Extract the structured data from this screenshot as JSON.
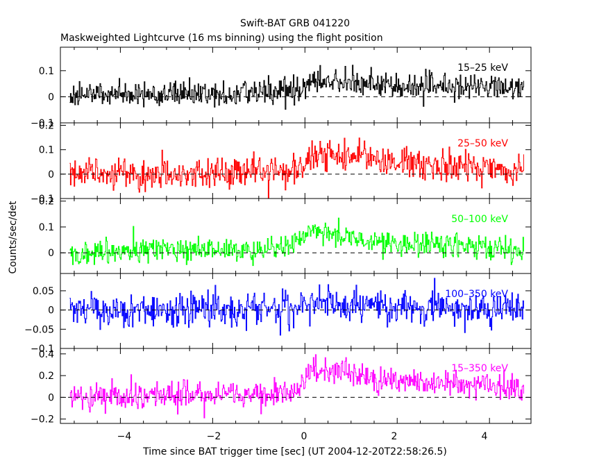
{
  "title": "Swift-BAT GRB 041220",
  "subtitle": "Maskweighted Lightcurve (16 ms binning) using the flight position",
  "ylabel": "Counts/sec/det",
  "xlabel": "Time since BAT trigger time [sec] (UT 2004-12-20T22:58:26.5)",
  "x_ticks": [
    "−4",
    "−2",
    "0",
    "2",
    "4"
  ],
  "chart_data": {
    "type": "line",
    "title": "Swift-BAT GRB 041220",
    "subtitle": "Maskweighted Lightcurve (16 ms binning) using the flight position",
    "xlabel": "Time since BAT trigger time [sec] (UT 2004-12-20T22:58:26.5)",
    "ylabel": "Counts/sec/det",
    "xlim": [
      -5.3,
      4.9
    ],
    "grid": false,
    "binning_sec": 0.016,
    "panels": [
      {
        "band": "15–25 keV",
        "color": "#000000",
        "ylim": [
          -0.1,
          0.19
        ],
        "yticks": [
          -0.1,
          0,
          0.1
        ],
        "ytick_labels": [
          "−0.1",
          "0",
          "0.1"
        ],
        "noise_sigma": 0.025,
        "x": [
          -5.1,
          -4,
          -3,
          -2,
          -1,
          -0.3,
          -0.05,
          0.05,
          0.3,
          0.6,
          1.0,
          1.4,
          2,
          3,
          4,
          4.75
        ],
        "y": [
          0.01,
          0.01,
          0.01,
          0.01,
          0.015,
          0.02,
          0.025,
          0.045,
          0.06,
          0.055,
          0.06,
          0.05,
          0.045,
          0.04,
          0.04,
          0.035
        ]
      },
      {
        "band": "25–50 keV",
        "color": "#ff0000",
        "ylim": [
          -0.1,
          0.21
        ],
        "yticks": [
          -0.1,
          0,
          0.1,
          0.2
        ],
        "ytick_labels": [
          "−0.1",
          "0",
          "0.1",
          "0.2"
        ],
        "noise_sigma": 0.033,
        "x": [
          -5.1,
          -4,
          -3,
          -2,
          -1,
          -0.3,
          -0.05,
          0.05,
          0.3,
          0.6,
          1.0,
          1.4,
          2,
          3,
          4,
          4.75
        ],
        "y": [
          0.0,
          0.0,
          0.0,
          0.0,
          0.005,
          0.01,
          0.03,
          0.08,
          0.08,
          0.075,
          0.08,
          0.065,
          0.05,
          0.04,
          0.03,
          0.025
        ]
      },
      {
        "band": "50–100 keV",
        "color": "#00ff00",
        "ylim": [
          -0.08,
          0.21
        ],
        "yticks": [
          0,
          0.1,
          0.2
        ],
        "ytick_labels": [
          "0",
          "0.1",
          "0.2"
        ],
        "noise_sigma": 0.025,
        "x": [
          -5.1,
          -4,
          -3,
          -2,
          -1,
          -0.3,
          -0.05,
          0.05,
          0.2,
          0.5,
          1.0,
          1.5,
          2,
          3,
          4,
          4.75
        ],
        "y": [
          0.005,
          0.005,
          0.01,
          0.01,
          0.015,
          0.03,
          0.06,
          0.09,
          0.1,
          0.07,
          0.06,
          0.05,
          0.035,
          0.03,
          0.025,
          0.02
        ]
      },
      {
        "band": "100–350 keV",
        "color": "#0000ff",
        "ylim": [
          -0.1,
          0.095
        ],
        "yticks": [
          -0.1,
          -0.05,
          0,
          0.05
        ],
        "ytick_labels": [
          "−0.1",
          "−0.05",
          "0",
          "0.05"
        ],
        "noise_sigma": 0.022,
        "x": [
          -5.1,
          -4,
          -3,
          -2,
          -1,
          -0.3,
          -0.05,
          0.05,
          0.3,
          0.6,
          1.0,
          1.5,
          2,
          3,
          4,
          4.75
        ],
        "y": [
          0.0,
          0.0,
          0.0,
          0.0,
          0.0,
          0.005,
          0.015,
          0.03,
          0.025,
          0.015,
          0.01,
          0.008,
          0.005,
          0.005,
          0.003,
          0.0
        ]
      },
      {
        "band": "15–350 keV",
        "color": "#ff00ff",
        "ylim": [
          -0.24,
          0.45
        ],
        "yticks": [
          -0.2,
          0,
          0.2,
          0.4
        ],
        "ytick_labels": [
          "−0.2",
          "0",
          "0.2",
          "0.4"
        ],
        "noise_sigma": 0.06,
        "x": [
          -5.1,
          -4,
          -3,
          -2,
          -1,
          -0.3,
          -0.05,
          0.05,
          0.2,
          0.5,
          0.8,
          1.2,
          1.6,
          2,
          3,
          4,
          4.75
        ],
        "y": [
          0.01,
          0.01,
          0.015,
          0.02,
          0.03,
          0.05,
          0.1,
          0.24,
          0.26,
          0.23,
          0.25,
          0.2,
          0.17,
          0.15,
          0.12,
          0.1,
          0.06
        ]
      }
    ]
  }
}
